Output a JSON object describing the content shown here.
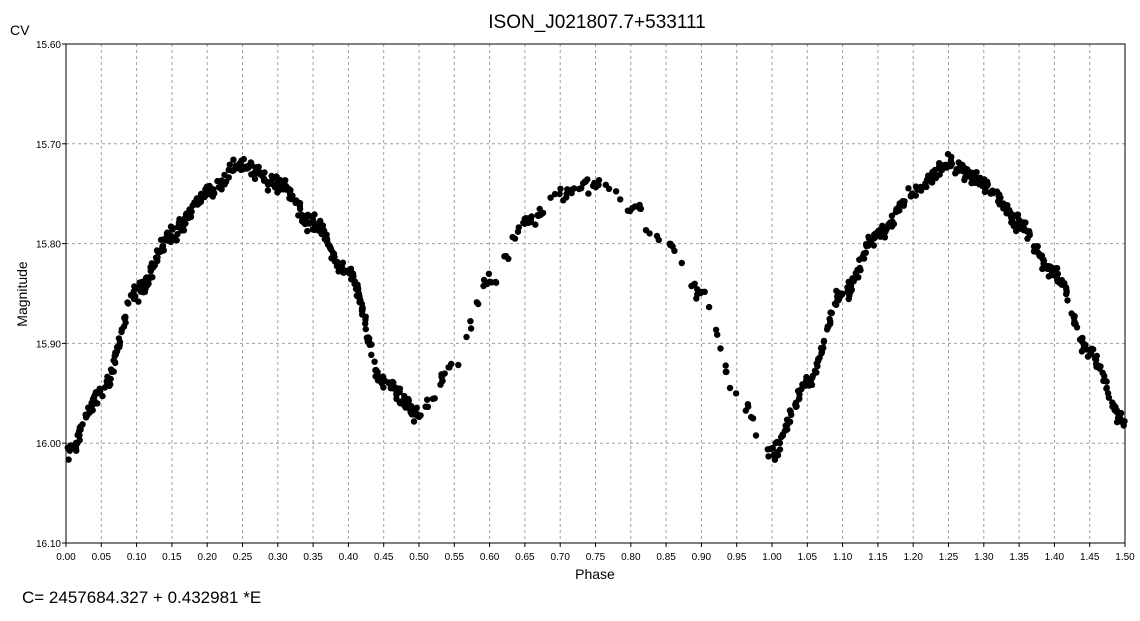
{
  "chart_data": {
    "type": "scatter",
    "title": "ISON_J021807.7+533111",
    "xlabel": "Phase",
    "ylabel": "Magnitude",
    "corner_label": "CV",
    "xlim": [
      0.0,
      1.5
    ],
    "ylim": [
      15.6,
      16.1
    ],
    "y_inverted": true,
    "grid": true,
    "x_ticks": [
      "0.00",
      "0.05",
      "0.10",
      "0.15",
      "0.20",
      "0.25",
      "0.30",
      "0.35",
      "0.40",
      "0.45",
      "0.50",
      "0.55",
      "0.60",
      "0.65",
      "0.70",
      "0.75",
      "0.80",
      "0.85",
      "0.90",
      "0.95",
      "1.00",
      "1.05",
      "1.10",
      "1.15",
      "1.20",
      "1.25",
      "1.30",
      "1.35",
      "1.40",
      "1.45",
      "1.50"
    ],
    "y_ticks": [
      "15.60",
      "15.70",
      "15.80",
      "15.90",
      "16.00",
      "16.10"
    ],
    "colors": {
      "points": "#000000",
      "grid": "#a0a0a0"
    },
    "light_curve": {
      "phase": [
        0.0,
        0.05,
        0.1,
        0.15,
        0.2,
        0.25,
        0.3,
        0.35,
        0.4,
        0.45,
        0.5,
        0.55,
        0.6,
        0.65,
        0.7,
        0.75,
        0.8,
        0.85,
        0.9,
        0.95,
        1.0,
        1.05,
        1.1,
        1.15,
        1.2,
        1.25,
        1.3,
        1.35,
        1.4,
        1.45,
        1.5
      ],
      "magnitude": [
        16.01,
        15.95,
        15.85,
        15.79,
        15.75,
        15.72,
        15.74,
        15.78,
        15.83,
        15.94,
        15.97,
        15.92,
        15.84,
        15.78,
        15.75,
        15.74,
        15.76,
        15.8,
        15.85,
        15.95,
        16.01,
        15.94,
        15.85,
        15.79,
        15.75,
        15.72,
        15.74,
        15.78,
        15.83,
        15.91,
        15.98
      ]
    }
  },
  "footer": {
    "ephemeris": "C= 2457684.327 + 0.432981 *E"
  }
}
